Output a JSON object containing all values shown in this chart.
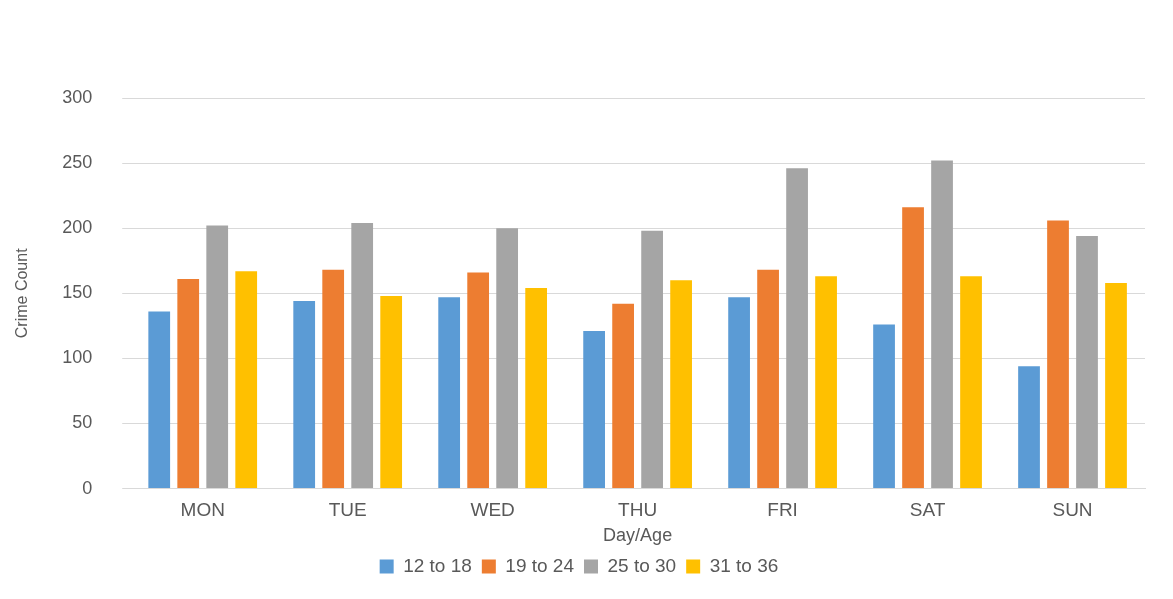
{
  "chart_data": {
    "type": "bar",
    "xlabel": "Day/Age",
    "ylabel": "Crime Count",
    "categories": [
      "MON",
      "TUE",
      "WED",
      "THU",
      "FRI",
      "SAT",
      "SUN"
    ],
    "series": [
      {
        "name": "12 to 18",
        "color": "#5b9bd5",
        "values": [
          136,
          144,
          147,
          121,
          147,
          126,
          94
        ]
      },
      {
        "name": "19 to 24",
        "color": "#ed7d31",
        "values": [
          161,
          168,
          166,
          142,
          168,
          216,
          206
        ]
      },
      {
        "name": "25 to 30",
        "color": "#a5a5a5",
        "values": [
          202,
          204,
          200,
          198,
          246,
          252,
          194
        ]
      },
      {
        "name": "31 to 36",
        "color": "#ffc000",
        "values": [
          167,
          148,
          154,
          160,
          163,
          163,
          158
        ]
      }
    ],
    "ylim": [
      0,
      300
    ],
    "yticks": [
      0,
      50,
      100,
      150,
      200,
      250,
      300
    ],
    "grid": "y",
    "legend": "bottom"
  }
}
